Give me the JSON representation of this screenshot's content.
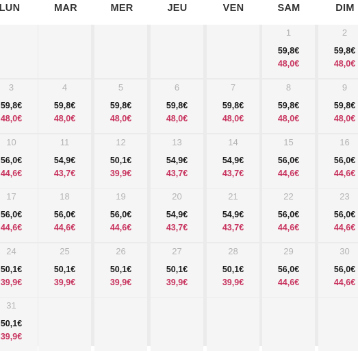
{
  "weekdays": [
    "LUN",
    "MAR",
    "MER",
    "JEU",
    "VEN",
    "SAM",
    "DIM"
  ],
  "weeks": [
    [
      null,
      null,
      null,
      null,
      null,
      {
        "day": "1",
        "price": "59,8€",
        "discount": "48,0€"
      },
      {
        "day": "2",
        "price": "59,8€",
        "discount": "48,0€"
      }
    ],
    [
      {
        "day": "3",
        "price": "59,8€",
        "discount": "48,0€"
      },
      {
        "day": "4",
        "price": "59,8€",
        "discount": "48,0€"
      },
      {
        "day": "5",
        "price": "59,8€",
        "discount": "48,0€"
      },
      {
        "day": "6",
        "price": "59,8€",
        "discount": "48,0€"
      },
      {
        "day": "7",
        "price": "59,8€",
        "discount": "48,0€"
      },
      {
        "day": "8",
        "price": "59,8€",
        "discount": "48,0€"
      },
      {
        "day": "9",
        "price": "59,8€",
        "discount": "48,0€"
      }
    ],
    [
      {
        "day": "10",
        "price": "56,0€",
        "discount": "44,6€"
      },
      {
        "day": "11",
        "price": "54,9€",
        "discount": "43,7€"
      },
      {
        "day": "12",
        "price": "50,1€",
        "discount": "39,9€"
      },
      {
        "day": "13",
        "price": "54,9€",
        "discount": "43,7€"
      },
      {
        "day": "14",
        "price": "54,9€",
        "discount": "43,7€"
      },
      {
        "day": "15",
        "price": "56,0€",
        "discount": "44,6€"
      },
      {
        "day": "16",
        "price": "56,0€",
        "discount": "44,6€"
      }
    ],
    [
      {
        "day": "17",
        "price": "56,0€",
        "discount": "44,6€"
      },
      {
        "day": "18",
        "price": "56,0€",
        "discount": "44,6€"
      },
      {
        "day": "19",
        "price": "56,0€",
        "discount": "44,6€"
      },
      {
        "day": "20",
        "price": "54,9€",
        "discount": "43,7€"
      },
      {
        "day": "21",
        "price": "54,9€",
        "discount": "43,7€"
      },
      {
        "day": "22",
        "price": "56,0€",
        "discount": "44,6€"
      },
      {
        "day": "23",
        "price": "56,0€",
        "discount": "44,6€"
      }
    ],
    [
      {
        "day": "24",
        "price": "50,1€",
        "discount": "39,9€"
      },
      {
        "day": "25",
        "price": "50,1€",
        "discount": "39,9€"
      },
      {
        "day": "26",
        "price": "50,1€",
        "discount": "39,9€"
      },
      {
        "day": "27",
        "price": "50,1€",
        "discount": "39,9€"
      },
      {
        "day": "28",
        "price": "50,1€",
        "discount": "39,9€"
      },
      {
        "day": "29",
        "price": "56,0€",
        "discount": "44,6€"
      },
      {
        "day": "30",
        "price": "56,0€",
        "discount": "44,6€"
      }
    ],
    [
      {
        "day": "31",
        "price": "50,1€",
        "discount": "39,9€"
      },
      null,
      null,
      null,
      null,
      null,
      null
    ]
  ],
  "colors": {
    "price": "#1a1a1a",
    "discount_price": "#c8345f",
    "day_number": "#b4b4b4",
    "cell_background": "#f5f5f5",
    "grid_lines": "#ebebeb"
  }
}
